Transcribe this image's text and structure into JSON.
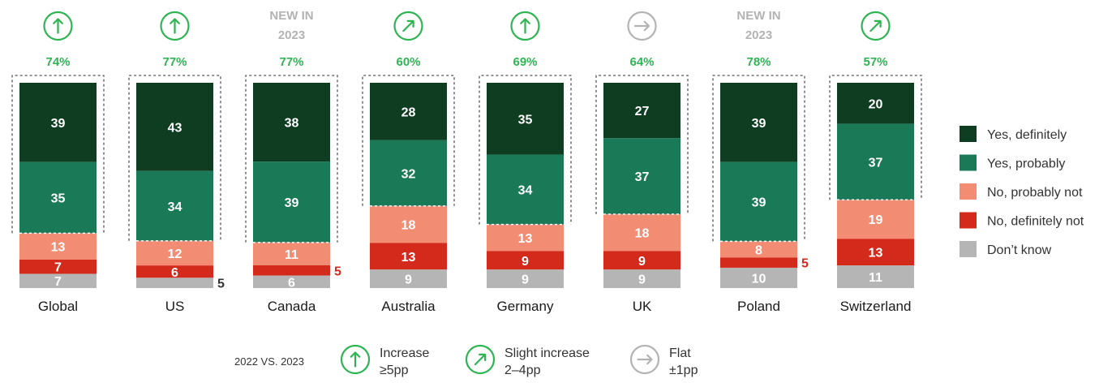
{
  "chart_data": {
    "type": "bar",
    "stacked": true,
    "categories": [
      "Global",
      "US",
      "Canada",
      "Australia",
      "Germany",
      "UK",
      "Poland",
      "Switzerland"
    ],
    "series": [
      {
        "name": "Yes, definitely",
        "color": "#0f3d22",
        "values": [
          39,
          43,
          38,
          28,
          35,
          27,
          39,
          20
        ]
      },
      {
        "name": "Yes, probably",
        "color": "#1a7a57",
        "values": [
          35,
          34,
          39,
          32,
          34,
          37,
          39,
          37
        ]
      },
      {
        "name": "No, probably not",
        "color": "#f28c73",
        "values": [
          13,
          12,
          11,
          18,
          13,
          18,
          8,
          19
        ]
      },
      {
        "name": "No, definitely not",
        "color": "#d42a1c",
        "values": [
          7,
          6,
          5,
          13,
          9,
          9,
          5,
          13
        ]
      },
      {
        "name": "Don’t know",
        "color": "#b5b5b5",
        "values": [
          7,
          5,
          6,
          9,
          9,
          9,
          10,
          11
        ]
      }
    ],
    "yes_total_labels": [
      "74%",
      "77%",
      "77%",
      "60%",
      "69%",
      "64%",
      "78%",
      "57%"
    ],
    "trend": [
      "increase",
      "increase",
      "new",
      "slight-increase",
      "increase",
      "flat",
      "new",
      "slight-increase"
    ],
    "new_label": [
      "NEW IN",
      "2023"
    ],
    "outside_labels": [
      {
        "category": "US",
        "series": "Don’t know",
        "text": "5",
        "color": "#333333"
      },
      {
        "category": "Canada",
        "series": "No, definitely not",
        "text": "5",
        "color": "#d42a1c"
      },
      {
        "category": "Poland",
        "series": "No, definitely not",
        "text": "5",
        "color": "#d42a1c"
      }
    ],
    "legend_position": "right",
    "grid": false
  },
  "footer": {
    "comparison_label": "2022 VS. 2023",
    "keys": [
      {
        "icon": "arrow-up-circle-icon",
        "label_lines": [
          "Increase",
          "≥5pp"
        ],
        "color": "#2db552"
      },
      {
        "icon": "arrow-up-right-circle-icon",
        "label_lines": [
          "Slight increase",
          "2–4pp"
        ],
        "color": "#2db552"
      },
      {
        "icon": "arrow-right-circle-icon",
        "label_lines": [
          "Flat",
          "±1pp"
        ],
        "color": "#b3b3b3"
      }
    ]
  },
  "colors": {
    "trend_green": "#2db552",
    "trend_gray": "#b3b3b3",
    "new_gray": "#b3b3b3"
  }
}
